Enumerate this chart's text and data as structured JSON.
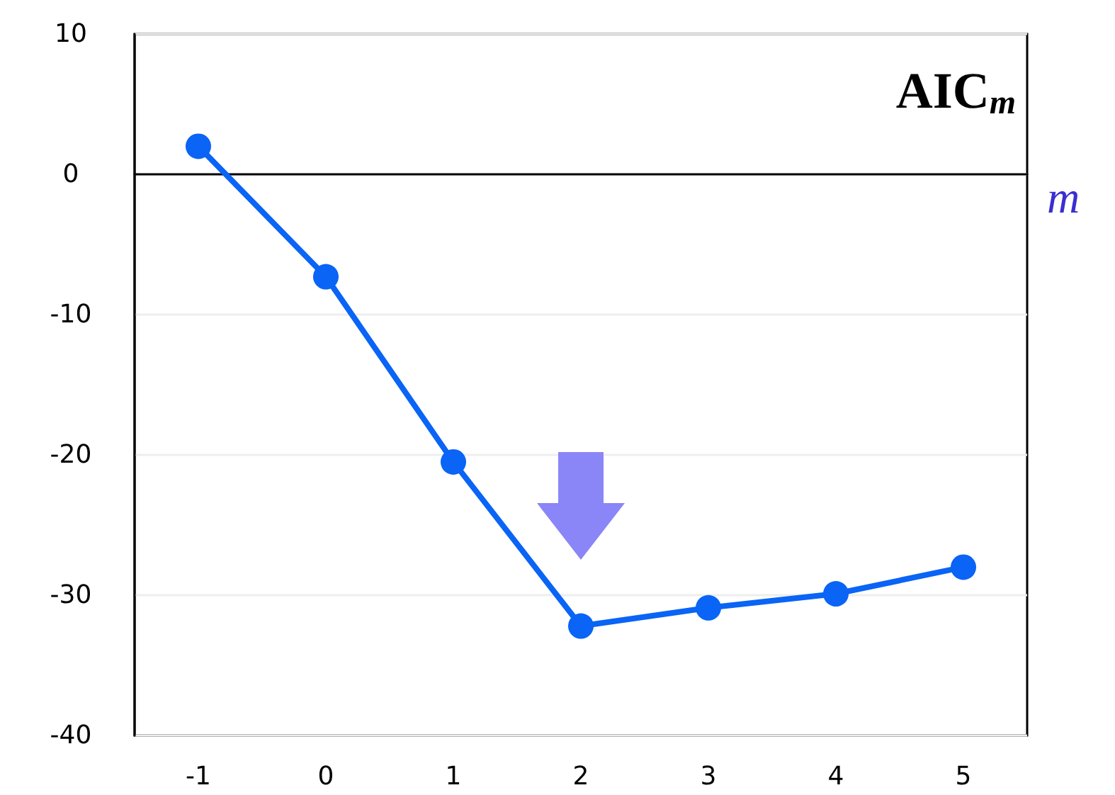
{
  "chart_data": {
    "type": "line",
    "title": "AIC$_{m}$",
    "xlabel": "m",
    "categories": [
      "-1",
      "0",
      "1",
      "2",
      "3",
      "4",
      "5"
    ],
    "series": [
      {
        "color": "#0a64f5",
        "values": [
          2.0,
          -7.3,
          -20.5,
          -32.2,
          -30.9,
          -29.9,
          -28.0
        ]
      }
    ],
    "ylim": [
      -40,
      10
    ],
    "yticks": [
      -40,
      -30,
      -20,
      -10,
      0,
      10
    ],
    "grid": "y",
    "marker": "circle",
    "line_style": "solid"
  }
}
